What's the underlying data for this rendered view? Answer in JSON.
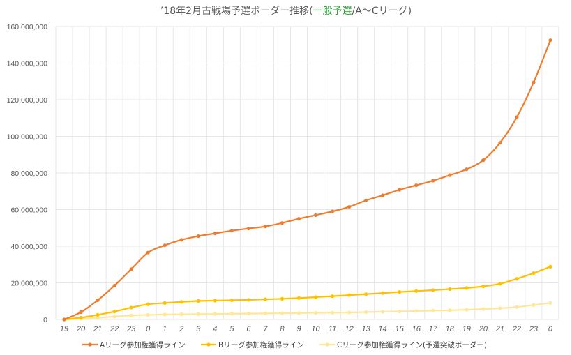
{
  "title": {
    "prefix": "’18年2月古戦場予選ボーダー推移(",
    "accent": "一般予選",
    "suffix": "/A～Cリーグ)"
  },
  "colors": {
    "series_a": "#ed7d31",
    "series_b": "#ffc000",
    "series_c": "#ffe699",
    "accent": "#2e9e3a"
  },
  "chart_data": {
    "type": "line",
    "title": "’18年2月古戦場予選ボーダー推移(一般予選/A～Cリーグ)",
    "categories": [
      "19",
      "20",
      "21",
      "22",
      "23",
      "0",
      "1",
      "2",
      "3",
      "4",
      "5",
      "6",
      "7",
      "8",
      "9",
      "10",
      "11",
      "12",
      "13",
      "14",
      "15",
      "16",
      "17",
      "18",
      "19",
      "20",
      "21",
      "22",
      "23",
      "0"
    ],
    "ylim": [
      0,
      160000000
    ],
    "yticks": [
      "0",
      "20,000,000",
      "40,000,000",
      "60,000,000",
      "80,000,000",
      "100,000,000",
      "120,000,000",
      "140,000,000",
      "160,000,000"
    ],
    "grid": true,
    "legend_position": "bottom",
    "series": [
      {
        "name": "Aリーグ参加権獲得ライン",
        "values": [
          0,
          4000000,
          10500000,
          18500000,
          27500000,
          36500000,
          40500000,
          43500000,
          45500000,
          47000000,
          48500000,
          49700000,
          50800000,
          52700000,
          55000000,
          57000000,
          59000000,
          61500000,
          65000000,
          67800000,
          70800000,
          73300000,
          75800000,
          78800000,
          82000000,
          87000000,
          96500000,
          110500000,
          129500000,
          152500000
        ]
      },
      {
        "name": "Bリーグ参加権獲得ライン",
        "values": [
          0,
          1000000,
          2500000,
          4300000,
          6500000,
          8300000,
          9000000,
          9600000,
          10100000,
          10300000,
          10500000,
          10700000,
          11000000,
          11300000,
          11700000,
          12200000,
          12700000,
          13300000,
          13800000,
          14400000,
          15000000,
          15500000,
          16000000,
          16600000,
          17200000,
          18100000,
          19500000,
          22200000,
          25300000,
          28800000
        ]
      },
      {
        "name": "Cリーグ参加権獲得ライン(予選突破ボーダー)",
        "values": [
          0,
          400000,
          900000,
          1600000,
          2200000,
          2500000,
          2700000,
          2800000,
          2900000,
          3000000,
          3100000,
          3200000,
          3300000,
          3400000,
          3500000,
          3600000,
          3700000,
          3800000,
          4000000,
          4200000,
          4400000,
          4600000,
          4800000,
          5000000,
          5300000,
          5700000,
          6100000,
          6800000,
          7900000,
          9000000
        ]
      }
    ]
  }
}
